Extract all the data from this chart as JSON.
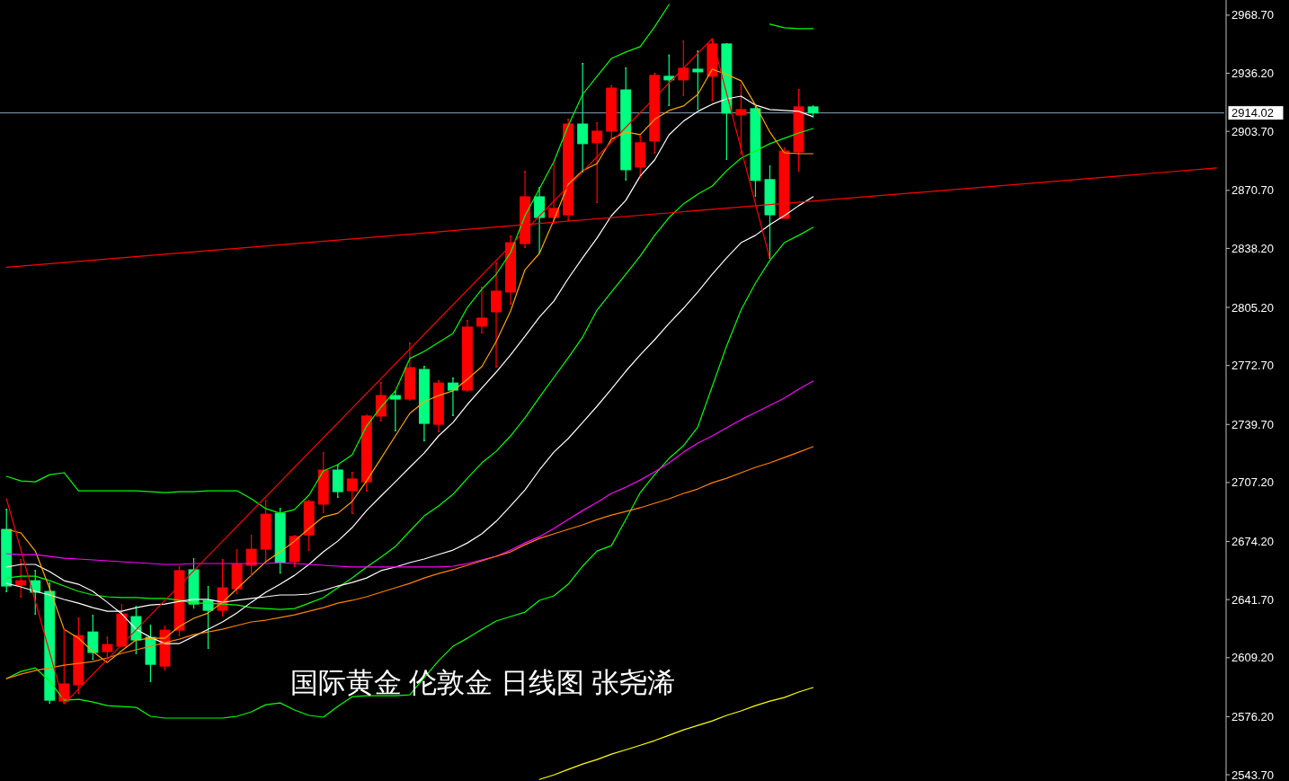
{
  "chart_data": {
    "type": "candlestick",
    "title": "国际黄金 伦敦金 日线图 张尧浠",
    "categories": [
      null,
      null,
      null,
      null,
      null,
      null,
      null,
      null,
      null,
      null,
      null,
      null,
      null,
      null,
      null,
      null,
      null,
      null,
      null,
      null,
      null,
      null,
      null,
      null,
      null,
      null,
      null,
      null,
      null,
      null,
      null,
      null,
      null,
      null,
      null,
      null,
      null,
      null,
      null,
      null,
      null,
      null,
      null,
      null,
      null,
      null,
      null,
      null,
      null,
      null,
      null,
      null,
      null,
      null,
      null,
      null,
      null,
      null,
      null,
      null,
      null,
      null,
      null,
      null,
      null,
      null,
      null,
      null,
      null,
      null,
      null,
      null,
      null,
      null,
      null,
      null,
      null,
      null,
      null,
      null,
      null,
      null,
      null,
      null,
      null
    ],
    "ohlc": [
      [
        2681.0,
        2692.6,
        2645.8,
        2649.3
      ],
      [
        2649.8,
        2664.4,
        2642.8,
        2652.3
      ],
      [
        2652.3,
        2658.4,
        2633.2,
        2645.8
      ],
      [
        2646.3,
        2651.3,
        2583.4,
        2585.4
      ],
      [
        2584.9,
        2625.6,
        2583.4,
        2594.5
      ],
      [
        2594.0,
        2631.7,
        2588.9,
        2621.6
      ],
      [
        2623.6,
        2633.2,
        2608.0,
        2612.1
      ],
      [
        2612.6,
        2621.1,
        2609.6,
        2616.6
      ],
      [
        2615.6,
        2639.2,
        2615.6,
        2633.7
      ],
      [
        2632.2,
        2638.2,
        2611.1,
        2619.1
      ],
      [
        2620.6,
        2627.7,
        2595.5,
        2605.5
      ],
      [
        2604.5,
        2627.2,
        2602.0,
        2624.6
      ],
      [
        2624.6,
        2660.4,
        2621.1,
        2657.9
      ],
      [
        2658.4,
        2664.9,
        2636.7,
        2639.2
      ],
      [
        2641.2,
        2649.3,
        2614.1,
        2635.7
      ],
      [
        2635.7,
        2664.4,
        2632.2,
        2648.3
      ],
      [
        2647.8,
        2669.9,
        2644.8,
        2661.4
      ],
      [
        2660.9,
        2677.9,
        2654.8,
        2669.9
      ],
      [
        2669.9,
        2697.6,
        2663.4,
        2689.5
      ],
      [
        2690.0,
        2693.1,
        2656.3,
        2662.4
      ],
      [
        2662.9,
        2677.9,
        2659.9,
        2677.0
      ],
      [
        2677.9,
        2697.6,
        2668.9,
        2696.6
      ],
      [
        2695.1,
        2724.2,
        2690.0,
        2714.2
      ],
      [
        2714.2,
        2717.2,
        2698.6,
        2702.1
      ],
      [
        2702.6,
        2713.2,
        2689.5,
        2709.2
      ],
      [
        2707.6,
        2745.4,
        2702.1,
        2744.4
      ],
      [
        2744.4,
        2763.5,
        2741.3,
        2755.9
      ],
      [
        2755.9,
        2758.4,
        2735.8,
        2753.9
      ],
      [
        2753.9,
        2785.6,
        2752.9,
        2771.5
      ],
      [
        2770.5,
        2772.5,
        2730.3,
        2740.3
      ],
      [
        2739.8,
        2764.5,
        2735.3,
        2762.9
      ],
      [
        2762.9,
        2766.0,
        2744.4,
        2758.9
      ],
      [
        2758.9,
        2798.2,
        2757.9,
        2794.2
      ],
      [
        2794.7,
        2816.8,
        2790.6,
        2799.2
      ],
      [
        2802.7,
        2830.4,
        2771.5,
        2814.3
      ],
      [
        2813.8,
        2845.5,
        2806.7,
        2841.4
      ],
      [
        2840.9,
        2881.7,
        2838.4,
        2867.1
      ],
      [
        2867.1,
        2872.6,
        2835.4,
        2855.5
      ],
      [
        2855.5,
        2886.7,
        2852.0,
        2860.6
      ],
      [
        2857.0,
        2910.8,
        2853.5,
        2907.8
      ],
      [
        2907.8,
        2942.0,
        2880.7,
        2896.8
      ],
      [
        2897.3,
        2908.8,
        2863.6,
        2903.8
      ],
      [
        2903.8,
        2929.5,
        2899.3,
        2927.9
      ],
      [
        2926.9,
        2939.5,
        2876.2,
        2882.2
      ],
      [
        2883.7,
        2901.3,
        2877.7,
        2897.3
      ],
      [
        2898.3,
        2936.5,
        2891.2,
        2935.0
      ],
      [
        2934.5,
        2946.6,
        2917.9,
        2932.5
      ],
      [
        2932.5,
        2954.6,
        2923.4,
        2939.0
      ],
      [
        2938.5,
        2949.1,
        2915.9,
        2937.0
      ],
      [
        2934.5,
        2955.6,
        2920.4,
        2952.6
      ],
      [
        2952.6,
        2953.1,
        2887.7,
        2913.9
      ],
      [
        2912.9,
        2930.0,
        2890.7,
        2915.9
      ],
      [
        2916.4,
        2918.4,
        2867.1,
        2876.2
      ],
      [
        2876.7,
        2884.7,
        2832.4,
        2857.0
      ],
      [
        2855.0,
        2894.7,
        2855.0,
        2892.7
      ],
      [
        2892.2,
        2927.4,
        2881.2,
        2917.4
      ],
      [
        2917.4,
        2918.4,
        2911.4,
        2914.0
      ],
      null,
      null,
      null,
      null,
      null,
      null,
      null,
      null,
      null,
      null,
      null,
      null,
      null,
      null,
      null,
      null,
      null,
      null,
      null,
      null,
      null,
      null,
      null,
      null,
      null,
      null,
      null,
      null
    ],
    "colors": [
      "#00ff80",
      "#ff0000",
      "#00ff80",
      "#00ff80",
      "#ff0000",
      "#ff0000",
      "#00ff80",
      "#ff0000",
      "#ff0000",
      "#00ff80",
      "#00ff80",
      "#ff0000",
      "#ff0000",
      "#00ff80",
      "#00ff80",
      "#ff0000",
      "#ff0000",
      "#ff0000",
      "#ff0000",
      "#00ff80",
      "#ff0000",
      "#ff0000",
      "#ff0000",
      "#00ff80",
      "#ff0000",
      "#ff0000",
      "#ff0000",
      "#00ff80",
      "#ff0000",
      "#00ff80",
      "#ff0000",
      "#00ff80",
      "#ff0000",
      "#ff0000",
      "#ff0000",
      "#ff0000",
      "#ff0000",
      "#00ff80",
      "#ff0000",
      "#ff0000",
      "#00ff80",
      "#ff0000",
      "#ff0000",
      "#00ff80",
      "#ff0000",
      "#ff0000",
      "#00ff80",
      "#ff0000",
      "#00ff80",
      "#ff0000",
      "#00ff80",
      "#ff0000",
      "#00ff80",
      "#00ff80",
      "#ff0000",
      "#ff0000",
      "#00ff80",
      null,
      null,
      null,
      null,
      null,
      null,
      null,
      null,
      null,
      null,
      null,
      null,
      null,
      null,
      null,
      null,
      null,
      null,
      null,
      null,
      null,
      null,
      null,
      null,
      null,
      null,
      null,
      null
    ],
    "series": [
      {
        "type": "line",
        "color": "#00ff00",
        "values": [
          2710.7,
          2708.1,
          2707.6,
          2711.6,
          2712.7,
          2702.6,
          2702.6,
          2702.6,
          2702.6,
          2702.6,
          2702.1,
          2701.6,
          2702.1,
          2702.1,
          2702.6,
          2702.6,
          2702.6,
          2698.1,
          2692.6,
          2690.0,
          2692.1,
          2700.1,
          2713.7,
          2717.2,
          2722.7,
          2738.8,
          2749.4,
          2758.5,
          2776.6,
          2780.6,
          2785.6,
          2790.6,
          2805.2,
          2815.3,
          2823.8,
          2835.9,
          2856.5,
          2871.6,
          2886.7,
          2906.8,
          2924.4,
          2934.5,
          2944.5,
          2948.1,
          2951.1,
          2962.2,
          2974.7,
          null,
          null,
          null,
          null,
          null,
          null,
          null,
          null,
          null,
          null,
          null,
          null,
          null,
          null,
          null,
          null,
          null,
          null,
          null,
          null,
          null,
          null,
          null,
          null,
          null,
          null,
          null,
          null,
          null,
          null,
          null,
          null,
          null,
          null,
          null,
          null,
          null,
          null
        ]
      },
      {
        "type": "line",
        "color": "#00ff00",
        "values": [
          null,
          null,
          null,
          null,
          null,
          null,
          null,
          null,
          null,
          null,
          null,
          null,
          null,
          null,
          null,
          null,
          null,
          null,
          null,
          null,
          null,
          null,
          null,
          null,
          null,
          null,
          null,
          null,
          null,
          null,
          null,
          null,
          null,
          null,
          null,
          null,
          null,
          null,
          null,
          null,
          null,
          null,
          null,
          null,
          null,
          null,
          null,
          null,
          null,
          null,
          null,
          null,
          null,
          2963.7,
          2961.7,
          2961.2,
          2961.2,
          null,
          null,
          null,
          null,
          null,
          null,
          null,
          null,
          null,
          null,
          null,
          null,
          null,
          null,
          null,
          null,
          null,
          null,
          null,
          null,
          null,
          null,
          null,
          null,
          null,
          null,
          null,
          null
        ]
      },
      {
        "type": "line",
        "color": "#00ff00",
        "values": [
          2653.8,
          2654.8,
          2654.8,
          2652.3,
          2649.3,
          2646.3,
          2644.3,
          2643.3,
          2642.8,
          2642.8,
          2642.3,
          2642.3,
          2641.3,
          2639.7,
          2639.7,
          2639.2,
          2638.7,
          2637.2,
          2636.7,
          2636.2,
          2636.7,
          2639.7,
          2642.8,
          2648.3,
          2653.8,
          2659.9,
          2665.4,
          2671.4,
          2680.0,
          2688.5,
          2694.1,
          2700.6,
          2709.6,
          2718.2,
          2724.7,
          2733.3,
          2743.4,
          2754.9,
          2766.0,
          2777.0,
          2788.6,
          2803.7,
          2813.8,
          2823.8,
          2833.9,
          2845.5,
          2855.5,
          2863.1,
          2868.6,
          2873.1,
          2881.7,
          2888.7,
          2892.7,
          2896.8,
          2899.8,
          2902.8,
          2905.3,
          null,
          null,
          null,
          null,
          null,
          null,
          null,
          null,
          null,
          null,
          null,
          null,
          null,
          null,
          null,
          null,
          null,
          null,
          null,
          null,
          null,
          null,
          null,
          null,
          null,
          null,
          null,
          null
        ]
      },
      {
        "type": "line",
        "color": "#00ff00",
        "values": [
          2597.5,
          2601.5,
          2603.5,
          2596.0,
          2585.4,
          2585.9,
          2584.4,
          2582.4,
          2581.9,
          2581.4,
          2576.4,
          2575.4,
          2575.4,
          2575.4,
          2575.4,
          2575.4,
          2576.4,
          2578.9,
          2582.9,
          2583.9,
          2579.9,
          2576.9,
          2575.9,
          2581.9,
          2587.4,
          2587.9,
          2587.9,
          2587.9,
          2588.4,
          2598.0,
          2607.5,
          2615.6,
          2620.1,
          2625.1,
          2629.7,
          2632.2,
          2634.7,
          2641.3,
          2643.8,
          2650.3,
          2660.4,
          2668.9,
          2671.9,
          2686.5,
          2701.6,
          2711.6,
          2720.7,
          2727.8,
          2738.3,
          2761.0,
          2783.6,
          2803.7,
          2818.8,
          2831.4,
          2841.4,
          2845.5,
          2850.0,
          null,
          null,
          null,
          null,
          null,
          null,
          null,
          null,
          null,
          null,
          null,
          null,
          null,
          null,
          null,
          null,
          null,
          null,
          null,
          null,
          null,
          null,
          null,
          null,
          null,
          null,
          null,
          null
        ]
      },
      {
        "type": "line",
        "color": "#ffffff",
        "values": [
          2659.9,
          2661.4,
          2661.4,
          2657.4,
          2652.3,
          2650.3,
          2646.3,
          2640.2,
          2633.7,
          2625.1,
          2620.6,
          2617.1,
          2617.1,
          2621.1,
          2625.1,
          2629.2,
          2634.2,
          2640.2,
          2645.8,
          2650.3,
          2655.3,
          2661.4,
          2668.4,
          2674.4,
          2682.0,
          2691.5,
          2699.6,
          2707.6,
          2715.7,
          2723.7,
          2733.3,
          2740.8,
          2750.9,
          2760.0,
          2769.0,
          2778.6,
          2789.1,
          2799.7,
          2808.7,
          2821.3,
          2832.9,
          2844.0,
          2856.5,
          2865.1,
          2878.7,
          2887.7,
          2901.8,
          2909.4,
          2914.9,
          2918.9,
          2921.9,
          2923.4,
          2918.4,
          2915.9,
          2915.4,
          2914.9,
          2911.9,
          null,
          null,
          null,
          null,
          null,
          null,
          null,
          null,
          null,
          null,
          null,
          null,
          null,
          null,
          null,
          null,
          null,
          null,
          null,
          null,
          null,
          null,
          null,
          null,
          null,
          null,
          null,
          null
        ]
      },
      {
        "type": "line",
        "color": "#ffffff",
        "values": [
          2650.8,
          2648.8,
          2646.3,
          2644.3,
          2641.8,
          2639.7,
          2637.2,
          2635.2,
          2635.2,
          2637.2,
          2638.7,
          2639.2,
          2640.7,
          2641.8,
          2641.8,
          2640.2,
          2641.3,
          2642.3,
          2643.3,
          2644.3,
          2644.3,
          2644.8,
          2646.8,
          2649.3,
          2651.3,
          2653.8,
          2657.9,
          2659.9,
          2662.4,
          2664.4,
          2666.9,
          2669.4,
          2673.4,
          2678.5,
          2685.5,
          2694.1,
          2703.1,
          2714.2,
          2724.2,
          2731.8,
          2740.8,
          2749.9,
          2759.5,
          2769.5,
          2778.6,
          2787.1,
          2796.2,
          2804.7,
          2813.8,
          2823.8,
          2832.9,
          2841.4,
          2845.5,
          2851.5,
          2856.5,
          2862.1,
          2867.1,
          null,
          null,
          null,
          null,
          null,
          null,
          null,
          null,
          null,
          null,
          null,
          null,
          null,
          null,
          null,
          null,
          null,
          null,
          null,
          null,
          null,
          null,
          null,
          null,
          null,
          null,
          null,
          null
        ]
      },
      {
        "type": "line",
        "color": "#ffa500",
        "values": [
          2681.0,
          2679.0,
          2668.9,
          2647.8,
          2625.1,
          2620.1,
          2612.6,
          2606.5,
          2613.1,
          2619.1,
          2620.1,
          2620.1,
          2626.7,
          2631.2,
          2634.2,
          2640.2,
          2647.8,
          2655.3,
          2662.9,
          2668.4,
          2674.4,
          2681.5,
          2688.0,
          2690.0,
          2696.6,
          2708.1,
          2720.7,
          2733.3,
          2745.9,
          2752.4,
          2755.9,
          2758.5,
          2765.0,
          2772.0,
          2786.1,
          2803.2,
          2826.3,
          2835.4,
          2854.0,
          2874.1,
          2881.7,
          2885.7,
          2899.3,
          2903.3,
          2901.8,
          2910.4,
          2915.4,
          2917.9,
          2924.4,
          2938.5,
          2935.5,
          2932.0,
          2918.4,
          2903.3,
          2891.7,
          2891.2,
          2891.2,
          null,
          null,
          null,
          null,
          null,
          null,
          null,
          null,
          null,
          null,
          null,
          null,
          null,
          null,
          null,
          null,
          null,
          null,
          null,
          null,
          null,
          null,
          null,
          null,
          null,
          null,
          null,
          null
        ]
      },
      {
        "type": "line",
        "color": "#ff00ff",
        "values": [
          2667.4,
          2666.9,
          2666.9,
          2665.9,
          2664.9,
          2664.4,
          2663.9,
          2663.4,
          2662.9,
          2662.4,
          2661.9,
          2661.4,
          2661.4,
          2661.9,
          2661.9,
          2661.9,
          2661.9,
          2661.9,
          2661.9,
          2662.4,
          2661.9,
          2661.4,
          2660.9,
          2660.4,
          2659.9,
          2659.9,
          2659.9,
          2659.9,
          2659.9,
          2659.9,
          2659.9,
          2660.4,
          2661.9,
          2663.9,
          2665.9,
          2669.4,
          2673.4,
          2676.9,
          2681.5,
          2686.5,
          2691.5,
          2696.1,
          2701.1,
          2704.6,
          2708.6,
          2713.2,
          2718.2,
          2724.2,
          2729.3,
          2733.3,
          2737.8,
          2742.4,
          2746.4,
          2750.4,
          2754.4,
          2759.5,
          2764.0,
          null,
          null,
          null,
          null,
          null,
          null,
          null,
          null,
          null,
          null,
          null,
          null,
          null,
          null,
          null,
          null,
          null,
          null,
          null,
          null,
          null,
          null,
          null,
          null,
          null,
          null,
          null,
          null
        ]
      },
      {
        "type": "line",
        "color": "#ff8000",
        "values": [
          2597.5,
          2600.0,
          2602.0,
          2603.5,
          2605.0,
          2606.0,
          2607.0,
          2609.1,
          2611.6,
          2613.6,
          2615.6,
          2617.6,
          2619.6,
          2622.1,
          2623.6,
          2625.1,
          2627.2,
          2629.2,
          2630.2,
          2631.7,
          2633.2,
          2635.2,
          2637.2,
          2639.7,
          2641.3,
          2643.3,
          2645.8,
          2648.3,
          2650.8,
          2653.8,
          2656.3,
          2658.4,
          2660.9,
          2663.4,
          2665.9,
          2668.4,
          2672.4,
          2675.9,
          2678.5,
          2681.0,
          2683.5,
          2686.5,
          2689.0,
          2691.0,
          2693.1,
          2695.6,
          2698.1,
          2701.1,
          2703.6,
          2707.1,
          2709.6,
          2712.7,
          2715.7,
          2718.2,
          2721.2,
          2724.2,
          2727.3,
          null,
          null,
          null,
          null,
          null,
          null,
          null,
          null,
          null,
          null,
          null,
          null,
          null,
          null,
          null,
          null,
          null,
          null,
          null,
          null,
          null,
          null,
          null,
          null,
          null,
          null,
          null,
          null
        ]
      },
      {
        "type": "line",
        "color": "#ffff00",
        "values": [
          null,
          null,
          null,
          null,
          null,
          null,
          null,
          null,
          null,
          null,
          null,
          null,
          null,
          null,
          null,
          null,
          null,
          null,
          null,
          null,
          null,
          null,
          null,
          null,
          null,
          null,
          null,
          null,
          null,
          null,
          null,
          null,
          null,
          null,
          null,
          null,
          null,
          2541.1,
          2543.6,
          2546.7,
          2549.7,
          2552.2,
          2555.2,
          2557.7,
          2560.2,
          2562.8,
          2565.8,
          2568.8,
          2571.3,
          2573.8,
          2576.9,
          2579.4,
          2582.4,
          2584.9,
          2586.9,
          2590.0,
          2592.5,
          null,
          null,
          null,
          null,
          null,
          null,
          null,
          null,
          null,
          null,
          null,
          null,
          null,
          null,
          null,
          null,
          null,
          null,
          null,
          null,
          null,
          null,
          null,
          null,
          null,
          null,
          null,
          null
        ]
      },
      {
        "type": "line",
        "color": "#ff0000",
        "values": [
          2698.1,
          null,
          null,
          null,
          2583.4,
          null,
          null,
          null,
          null,
          null,
          null,
          null,
          null,
          null,
          null,
          null,
          null,
          null,
          null,
          null,
          null,
          null,
          null,
          null,
          null,
          null,
          null,
          null,
          null,
          null,
          null,
          null,
          null,
          null,
          null,
          null,
          null,
          null,
          null,
          null,
          null,
          null,
          null,
          null,
          null,
          null,
          null,
          null,
          null,
          2955.6,
          null,
          null,
          null,
          2832.4,
          null,
          null,
          null,
          null,
          null,
          null,
          null,
          null,
          null,
          null,
          null,
          null,
          null,
          null,
          null,
          null,
          null,
          null,
          null,
          null,
          null,
          null,
          null,
          null,
          null,
          null,
          null,
          null,
          null,
          null,
          null
        ]
      },
      {
        "type": "line",
        "color": "#ff0000",
        "values": [
          2827.7,
          null,
          null,
          null,
          null,
          null,
          null,
          null,
          null,
          null,
          null,
          null,
          null,
          null,
          null,
          null,
          null,
          null,
          null,
          null,
          null,
          null,
          null,
          null,
          null,
          null,
          null,
          null,
          null,
          null,
          null,
          null,
          null,
          null,
          null,
          null,
          null,
          null,
          null,
          null,
          null,
          null,
          null,
          null,
          null,
          null,
          null,
          null,
          null,
          null,
          null,
          null,
          null,
          null,
          null,
          null,
          null,
          null,
          null,
          null,
          null,
          null,
          null,
          null,
          null,
          null,
          null,
          null,
          null,
          null,
          null,
          null,
          null,
          null,
          null,
          null,
          null,
          null,
          null,
          null,
          null,
          null,
          null,
          null,
          2883.2
        ]
      }
    ],
    "ylim": [
      2540.2,
      2977.2
    ],
    "yticks": [
      {
        "value": 2968.7,
        "label": "2968.70"
      },
      {
        "value": 2936.2,
        "label": "2936.20"
      },
      {
        "value": 2903.7,
        "label": "2903.70"
      },
      {
        "value": 2870.7,
        "label": "2870.70"
      },
      {
        "value": 2838.2,
        "label": "2838.20"
      },
      {
        "value": 2805.2,
        "label": "2805.20"
      },
      {
        "value": 2772.7,
        "label": "2772.70"
      },
      {
        "value": 2739.7,
        "label": "2739.70"
      },
      {
        "value": 2707.2,
        "label": "2707.20"
      },
      {
        "value": 2674.2,
        "label": "2674.20"
      },
      {
        "value": 2641.7,
        "label": "2641.70"
      },
      {
        "value": 2609.2,
        "label": "2609.20"
      },
      {
        "value": 2576.2,
        "label": "2576.20"
      },
      {
        "value": 2543.7,
        "label": "2543.70"
      }
    ],
    "ref_lines": [
      {
        "axis": "y",
        "value": 2914.02,
        "label": "2914.02",
        "color": "#8aa0b8"
      }
    ]
  }
}
